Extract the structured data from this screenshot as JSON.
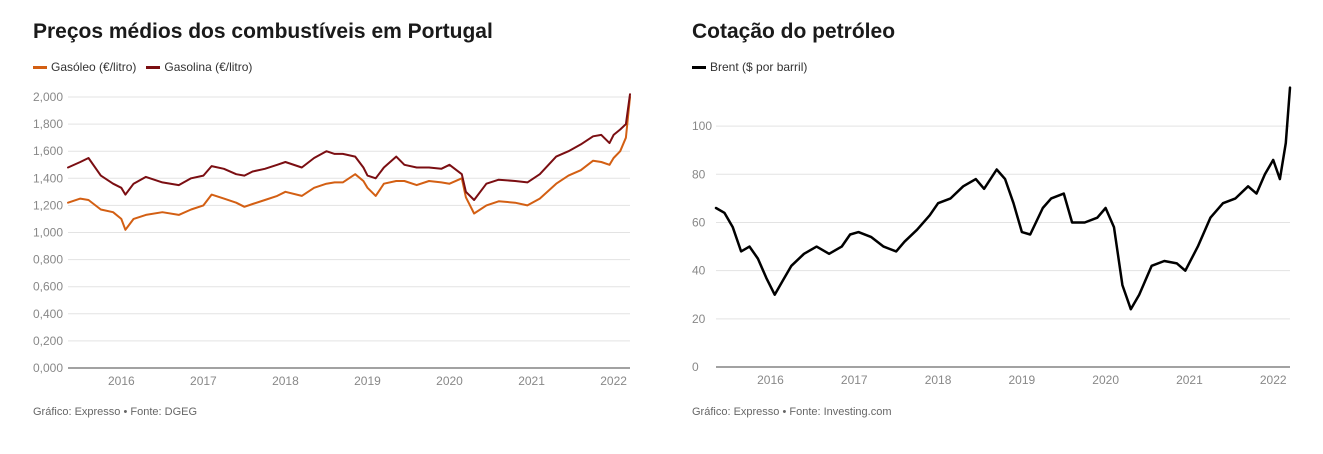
{
  "charts": [
    {
      "title": "Preços médios dos combustíveis em Portugal",
      "source": "Gráfico: Expresso • Fonte: DGEG",
      "legend": [
        {
          "label": "Gasóleo (€/litro)",
          "color": "#d35f13"
        },
        {
          "label": "Gasolina (€/litro)",
          "color": "#7b0e12"
        }
      ]
    },
    {
      "title": "Cotação do petróleo",
      "source": "Gráfico: Expresso • Fonte: Investing.com",
      "legend": [
        {
          "label": "Brent ($ por barril)",
          "color": "#000000"
        }
      ]
    }
  ],
  "chart_data": [
    {
      "type": "line",
      "title": "Preços médios dos combustíveis em Portugal",
      "xlabel": "",
      "ylabel": "",
      "x_ticks": [
        "2016",
        "2017",
        "2018",
        "2019",
        "2020",
        "2021",
        "2022"
      ],
      "y_ticks": [
        "0,000",
        "0,200",
        "0,400",
        "0,600",
        "0,800",
        "1,000",
        "1,200",
        "1,400",
        "1,600",
        "1,800",
        "2,000"
      ],
      "ylim": [
        0,
        2.0
      ],
      "xlim": [
        2015.35,
        2022.2
      ],
      "grid": true,
      "legend_position": "top-left",
      "series": [
        {
          "name": "Gasóleo (€/litro)",
          "color": "#d35f13",
          "x": [
            2015.35,
            2015.5,
            2015.6,
            2015.75,
            2015.9,
            2016.0,
            2016.05,
            2016.15,
            2016.3,
            2016.5,
            2016.7,
            2016.85,
            2017.0,
            2017.1,
            2017.25,
            2017.4,
            2017.5,
            2017.6,
            2017.75,
            2017.9,
            2018.0,
            2018.2,
            2018.35,
            2018.5,
            2018.6,
            2018.7,
            2018.85,
            2018.95,
            2019.0,
            2019.1,
            2019.2,
            2019.35,
            2019.45,
            2019.6,
            2019.75,
            2019.9,
            2020.0,
            2020.15,
            2020.2,
            2020.3,
            2020.45,
            2020.6,
            2020.8,
            2020.95,
            2021.1,
            2021.3,
            2021.45,
            2021.6,
            2021.75,
            2021.85,
            2021.95,
            2022.0,
            2022.08,
            2022.15,
            2022.2
          ],
          "values": [
            1.22,
            1.25,
            1.24,
            1.17,
            1.15,
            1.1,
            1.02,
            1.1,
            1.13,
            1.15,
            1.13,
            1.17,
            1.2,
            1.28,
            1.25,
            1.22,
            1.19,
            1.21,
            1.24,
            1.27,
            1.3,
            1.27,
            1.33,
            1.36,
            1.37,
            1.37,
            1.43,
            1.38,
            1.33,
            1.27,
            1.36,
            1.38,
            1.38,
            1.35,
            1.38,
            1.37,
            1.36,
            1.4,
            1.26,
            1.14,
            1.2,
            1.23,
            1.22,
            1.2,
            1.25,
            1.36,
            1.42,
            1.46,
            1.53,
            1.52,
            1.5,
            1.55,
            1.6,
            1.7,
            2.0
          ]
        },
        {
          "name": "Gasolina (€/litro)",
          "color": "#7b0e12",
          "x": [
            2015.35,
            2015.5,
            2015.6,
            2015.75,
            2015.9,
            2016.0,
            2016.05,
            2016.15,
            2016.3,
            2016.5,
            2016.7,
            2016.85,
            2017.0,
            2017.1,
            2017.25,
            2017.4,
            2017.5,
            2017.6,
            2017.75,
            2017.9,
            2018.0,
            2018.2,
            2018.35,
            2018.5,
            2018.6,
            2018.7,
            2018.85,
            2018.95,
            2019.0,
            2019.1,
            2019.2,
            2019.35,
            2019.45,
            2019.6,
            2019.75,
            2019.9,
            2020.0,
            2020.15,
            2020.2,
            2020.3,
            2020.45,
            2020.6,
            2020.8,
            2020.95,
            2021.1,
            2021.3,
            2021.45,
            2021.6,
            2021.75,
            2021.85,
            2021.95,
            2022.0,
            2022.08,
            2022.15,
            2022.2
          ],
          "values": [
            1.48,
            1.52,
            1.55,
            1.42,
            1.36,
            1.33,
            1.28,
            1.36,
            1.41,
            1.37,
            1.35,
            1.4,
            1.42,
            1.49,
            1.47,
            1.43,
            1.42,
            1.45,
            1.47,
            1.5,
            1.52,
            1.48,
            1.55,
            1.6,
            1.58,
            1.58,
            1.56,
            1.48,
            1.42,
            1.4,
            1.48,
            1.56,
            1.5,
            1.48,
            1.48,
            1.47,
            1.5,
            1.43,
            1.3,
            1.24,
            1.36,
            1.39,
            1.38,
            1.37,
            1.43,
            1.56,
            1.6,
            1.65,
            1.71,
            1.72,
            1.66,
            1.72,
            1.76,
            1.8,
            2.02
          ]
        }
      ]
    },
    {
      "type": "line",
      "title": "Cotação do petróleo",
      "xlabel": "",
      "ylabel": "",
      "x_ticks": [
        "2016",
        "2017",
        "2018",
        "2019",
        "2020",
        "2021",
        "2022"
      ],
      "y_ticks": [
        "0",
        "20",
        "40",
        "60",
        "80",
        "100"
      ],
      "ylim": [
        0,
        115
      ],
      "xlim": [
        2015.35,
        2022.2
      ],
      "grid": true,
      "legend_position": "top-left",
      "series": [
        {
          "name": "Brent ($ por barril)",
          "color": "#000000",
          "x": [
            2015.35,
            2015.45,
            2015.55,
            2015.65,
            2015.75,
            2015.85,
            2015.95,
            2016.05,
            2016.15,
            2016.25,
            2016.4,
            2016.55,
            2016.7,
            2016.85,
            2016.95,
            2017.05,
            2017.2,
            2017.35,
            2017.5,
            2017.6,
            2017.75,
            2017.9,
            2018.0,
            2018.15,
            2018.3,
            2018.45,
            2018.55,
            2018.7,
            2018.8,
            2018.9,
            2019.0,
            2019.1,
            2019.25,
            2019.35,
            2019.5,
            2019.6,
            2019.75,
            2019.9,
            2020.0,
            2020.1,
            2020.2,
            2020.3,
            2020.4,
            2020.55,
            2020.7,
            2020.85,
            2020.95,
            2021.1,
            2021.25,
            2021.4,
            2021.55,
            2021.7,
            2021.8,
            2021.9,
            2022.0,
            2022.08,
            2022.15,
            2022.2
          ],
          "values": [
            66,
            64,
            58,
            48,
            50,
            45,
            37,
            30,
            36,
            42,
            47,
            50,
            47,
            50,
            55,
            56,
            54,
            50,
            48,
            52,
            57,
            63,
            68,
            70,
            75,
            78,
            74,
            82,
            78,
            68,
            56,
            55,
            66,
            70,
            72,
            60,
            60,
            62,
            66,
            58,
            34,
            24,
            30,
            42,
            44,
            43,
            40,
            50,
            62,
            68,
            70,
            75,
            72,
            80,
            86,
            78,
            93,
            116
          ]
        }
      ]
    }
  ]
}
